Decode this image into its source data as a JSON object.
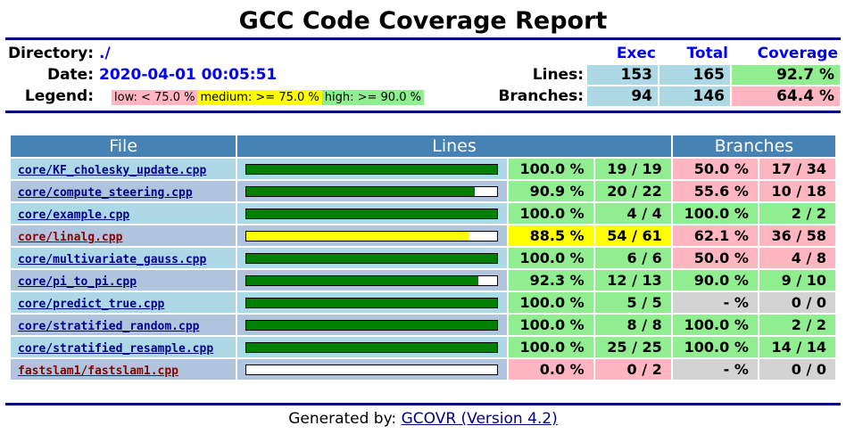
{
  "title": "GCC Code Coverage Report",
  "header": {
    "directory_label": "Directory:",
    "directory_value": "./",
    "date_label": "Date:",
    "date_value": "2020-04-01 00:05:51",
    "legend_label": "Legend:",
    "legend_low": "low: < 75.0 %",
    "legend_medium": "medium: >= 75.0 %",
    "legend_high": "high: >= 90.0 %",
    "col_exec": "Exec",
    "col_total": "Total",
    "col_coverage": "Coverage",
    "lines_label": "Lines:",
    "lines_exec": "153",
    "lines_total": "165",
    "lines_coverage": "92.7 %",
    "branches_label": "Branches:",
    "branches_exec": "94",
    "branches_total": "146",
    "branches_coverage": "64.4 %"
  },
  "table": {
    "col_file": "File",
    "col_lines": "Lines",
    "col_branches": "Branches",
    "rows": [
      {
        "file": "core/KF_cholesky_update.cpp",
        "line_pct": "100.0 %",
        "line_frac": 1.0,
        "line_cnt": "19 / 19",
        "line_level": "high",
        "br_pct": "50.0 %",
        "br_cnt": "17 / 34",
        "br_level": "low"
      },
      {
        "file": "core/compute_steering.cpp",
        "line_pct": "90.9 %",
        "line_frac": 0.909,
        "line_cnt": "20 / 22",
        "line_level": "high",
        "br_pct": "55.6 %",
        "br_cnt": "10 / 18",
        "br_level": "low"
      },
      {
        "file": "core/example.cpp",
        "line_pct": "100.0 %",
        "line_frac": 1.0,
        "line_cnt": "4 / 4",
        "line_level": "high",
        "br_pct": "100.0 %",
        "br_cnt": "2 / 2",
        "br_level": "high"
      },
      {
        "file": "core/linalg.cpp",
        "line_pct": "88.5 %",
        "line_frac": 0.885,
        "line_cnt": "54 / 61",
        "line_level": "medium",
        "br_pct": "62.1 %",
        "br_cnt": "36 / 58",
        "br_level": "low"
      },
      {
        "file": "core/multivariate_gauss.cpp",
        "line_pct": "100.0 %",
        "line_frac": 1.0,
        "line_cnt": "6 / 6",
        "line_level": "high",
        "br_pct": "50.0 %",
        "br_cnt": "4 / 8",
        "br_level": "low"
      },
      {
        "file": "core/pi_to_pi.cpp",
        "line_pct": "92.3 %",
        "line_frac": 0.923,
        "line_cnt": "12 / 13",
        "line_level": "high",
        "br_pct": "90.0 %",
        "br_cnt": "9 / 10",
        "br_level": "high"
      },
      {
        "file": "core/predict_true.cpp",
        "line_pct": "100.0 %",
        "line_frac": 1.0,
        "line_cnt": "5 / 5",
        "line_level": "high",
        "br_pct": "- %",
        "br_cnt": "0 / 0",
        "br_level": "none"
      },
      {
        "file": "core/stratified_random.cpp",
        "line_pct": "100.0 %",
        "line_frac": 1.0,
        "line_cnt": "8 / 8",
        "line_level": "high",
        "br_pct": "100.0 %",
        "br_cnt": "2 / 2",
        "br_level": "high"
      },
      {
        "file": "core/stratified_resample.cpp",
        "line_pct": "100.0 %",
        "line_frac": 1.0,
        "line_cnt": "25 / 25",
        "line_level": "high",
        "br_pct": "100.0 %",
        "br_cnt": "14 / 14",
        "br_level": "high"
      },
      {
        "file": "fastslam1/fastslam1.cpp",
        "line_pct": "0.0 %",
        "line_frac": 0.0,
        "line_cnt": "0 / 2",
        "line_level": "low",
        "br_pct": "- %",
        "br_cnt": "0 / 0",
        "br_level": "none"
      }
    ]
  },
  "colors": {
    "high": "#90ee90",
    "medium": "#ffff00",
    "low": "#ffb6c1",
    "none": "#d3d3d3",
    "bar_high": "#008000",
    "bar_medium": "#ffff00",
    "bar_low": "#ff0000",
    "header_bg": "#4682b4",
    "rule": "#000080"
  },
  "footer": {
    "prefix": "Generated by: ",
    "link": "GCOVR (Version 4.2)"
  }
}
